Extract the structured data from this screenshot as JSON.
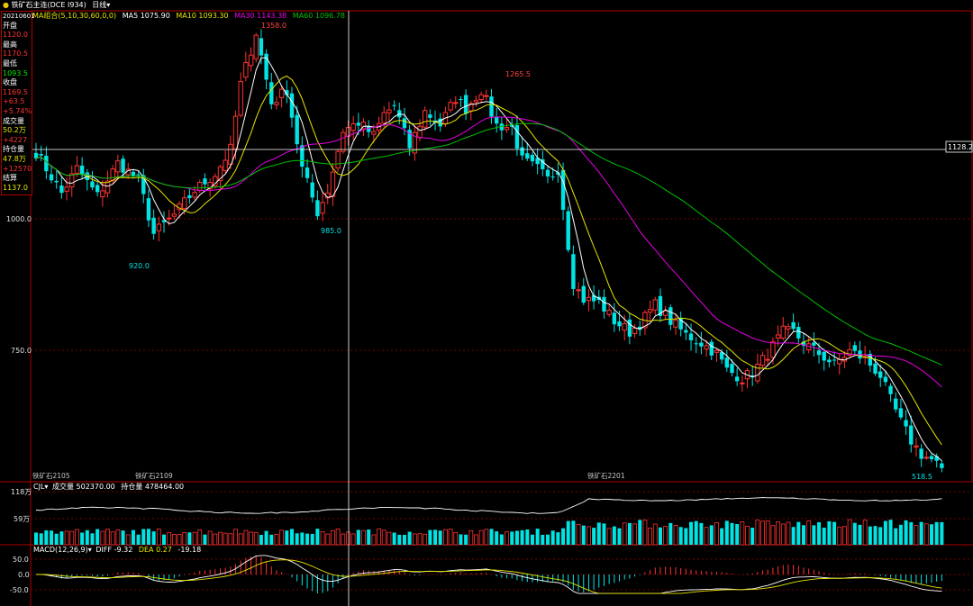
{
  "toolbar": {
    "symbol": "铁矿石主连(DCE I934)",
    "period": "日线"
  },
  "ma_legend": {
    "title": "MA组合(5,10,30,60,0,0)",
    "ma5": "MA5 1075.90",
    "ma10": "MA10 1093.30",
    "ma30": "MA30 1143.38",
    "ma60": "MA60 1096.78"
  },
  "info_panel": {
    "date": "20210601",
    "open_label": "开盘",
    "open": "1120.0",
    "high_label": "最高",
    "high": "1170.5",
    "low_label": "最低",
    "low": "1093.5",
    "close_label": "收盘",
    "close": "1169.5",
    "change": "+63.5",
    "change_pct": "+5.74%",
    "volume_label": "成交量",
    "volume": "50.2万",
    "volume_change": "+4227",
    "oi_label": "持仓量",
    "oi": "47.8万",
    "oi_change": "+12570",
    "settle_label": "结算",
    "settle": "1137.0"
  },
  "price_axis": {
    "level_1000": "1000.0",
    "level_750": "750.0",
    "crosshair": "1128.2"
  },
  "annotations": {
    "high_1": "1358.0",
    "low_1": "920.0",
    "low_2": "985.0",
    "high_2": "1265.5",
    "low_3": "518.5"
  },
  "contract_labels": {
    "c1": "铁矿石2105",
    "c2": "铁矿石2109",
    "c3": "铁矿石2201"
  },
  "volume_panel": {
    "title": "CJL",
    "volume": "成交量 502370.00",
    "oi": "持仓量 478464.00",
    "tick_high": "118万",
    "tick_mid": "59万"
  },
  "macd_panel": {
    "title": "MACD(12,26,9)",
    "diff": "DIFF -9.32",
    "dea": "DEA 0.27",
    "macd": "-19.18",
    "tick_50": "50.0",
    "tick_0": "0.0",
    "tick_m50": "-50.0"
  },
  "colors": {
    "up": "#ff3232",
    "down": "#00e4e4",
    "ma5": "#ffffff",
    "ma10": "#e6e600",
    "ma30": "#e600e6",
    "ma60": "#00c000",
    "axis": "#b00000"
  },
  "chart_data": {
    "type": "candlestick",
    "x_labels": [
      "铁矿石2105",
      "铁矿石2109",
      "铁矿石2201"
    ],
    "price_range": [
      505,
      1370
    ],
    "key_points": [
      {
        "label": "1358.0",
        "value": 1358.0,
        "kind": "high"
      },
      {
        "label": "920.0",
        "value": 920.0,
        "kind": "low"
      },
      {
        "label": "985.0",
        "value": 985.0,
        "kind": "low"
      },
      {
        "label": "1265.5",
        "value": 1265.5,
        "kind": "high"
      },
      {
        "label": "518.5",
        "value": 518.5,
        "kind": "low"
      }
    ],
    "close_anchors": [
      [
        0,
        1110
      ],
      [
        3,
        1065
      ],
      [
        5,
        1035
      ],
      [
        8,
        1080
      ],
      [
        12,
        1030
      ],
      [
        16,
        1090
      ],
      [
        20,
        1060
      ],
      [
        23,
        960
      ],
      [
        27,
        995
      ],
      [
        31,
        1040
      ],
      [
        35,
        1070
      ],
      [
        38,
        1115
      ],
      [
        40,
        1235
      ],
      [
        43,
        1330
      ],
      [
        46,
        1200
      ],
      [
        49,
        1225
      ],
      [
        52,
        1080
      ],
      [
        55,
        1000
      ],
      [
        57,
        1040
      ],
      [
        60,
        1150
      ],
      [
        63,
        1165
      ],
      [
        66,
        1140
      ],
      [
        68,
        1180
      ],
      [
        70,
        1195
      ],
      [
        73,
        1120
      ],
      [
        76,
        1185
      ],
      [
        79,
        1160
      ],
      [
        82,
        1210
      ],
      [
        84,
        1190
      ],
      [
        87,
        1225
      ],
      [
        90,
        1160
      ],
      [
        93,
        1155
      ],
      [
        95,
        1095
      ],
      [
        98,
        1080
      ],
      [
        100,
        1060
      ],
      [
        102,
        1080
      ],
      [
        105,
        870
      ],
      [
        107,
        840
      ],
      [
        110,
        835
      ],
      [
        113,
        800
      ],
      [
        116,
        780
      ],
      [
        118,
        795
      ],
      [
        121,
        830
      ],
      [
        124,
        800
      ],
      [
        127,
        775
      ],
      [
        130,
        760
      ],
      [
        133,
        740
      ],
      [
        135,
        710
      ],
      [
        138,
        695
      ],
      [
        140,
        705
      ],
      [
        143,
        740
      ],
      [
        146,
        780
      ],
      [
        148,
        780
      ],
      [
        150,
        760
      ],
      [
        153,
        740
      ],
      [
        156,
        720
      ],
      [
        159,
        745
      ],
      [
        162,
        730
      ],
      [
        165,
        700
      ],
      [
        167,
        655
      ],
      [
        169,
        615
      ],
      [
        171,
        580
      ],
      [
        173,
        555
      ],
      [
        175,
        545
      ],
      [
        177,
        530
      ]
    ],
    "ma_last": {
      "MA5": 1075.9,
      "MA10": 1093.3,
      "MA30": 1143.38,
      "MA60": 1096.78
    },
    "volume_last": 502370.0,
    "open_interest_last": 478464.0,
    "volume_ticks": [
      "118万",
      "59万"
    ],
    "macd": {
      "DIFF": -9.32,
      "DEA": 0.27,
      "MACD": -19.18,
      "ticks": [
        50.0,
        0.0,
        -50.0
      ]
    }
  }
}
